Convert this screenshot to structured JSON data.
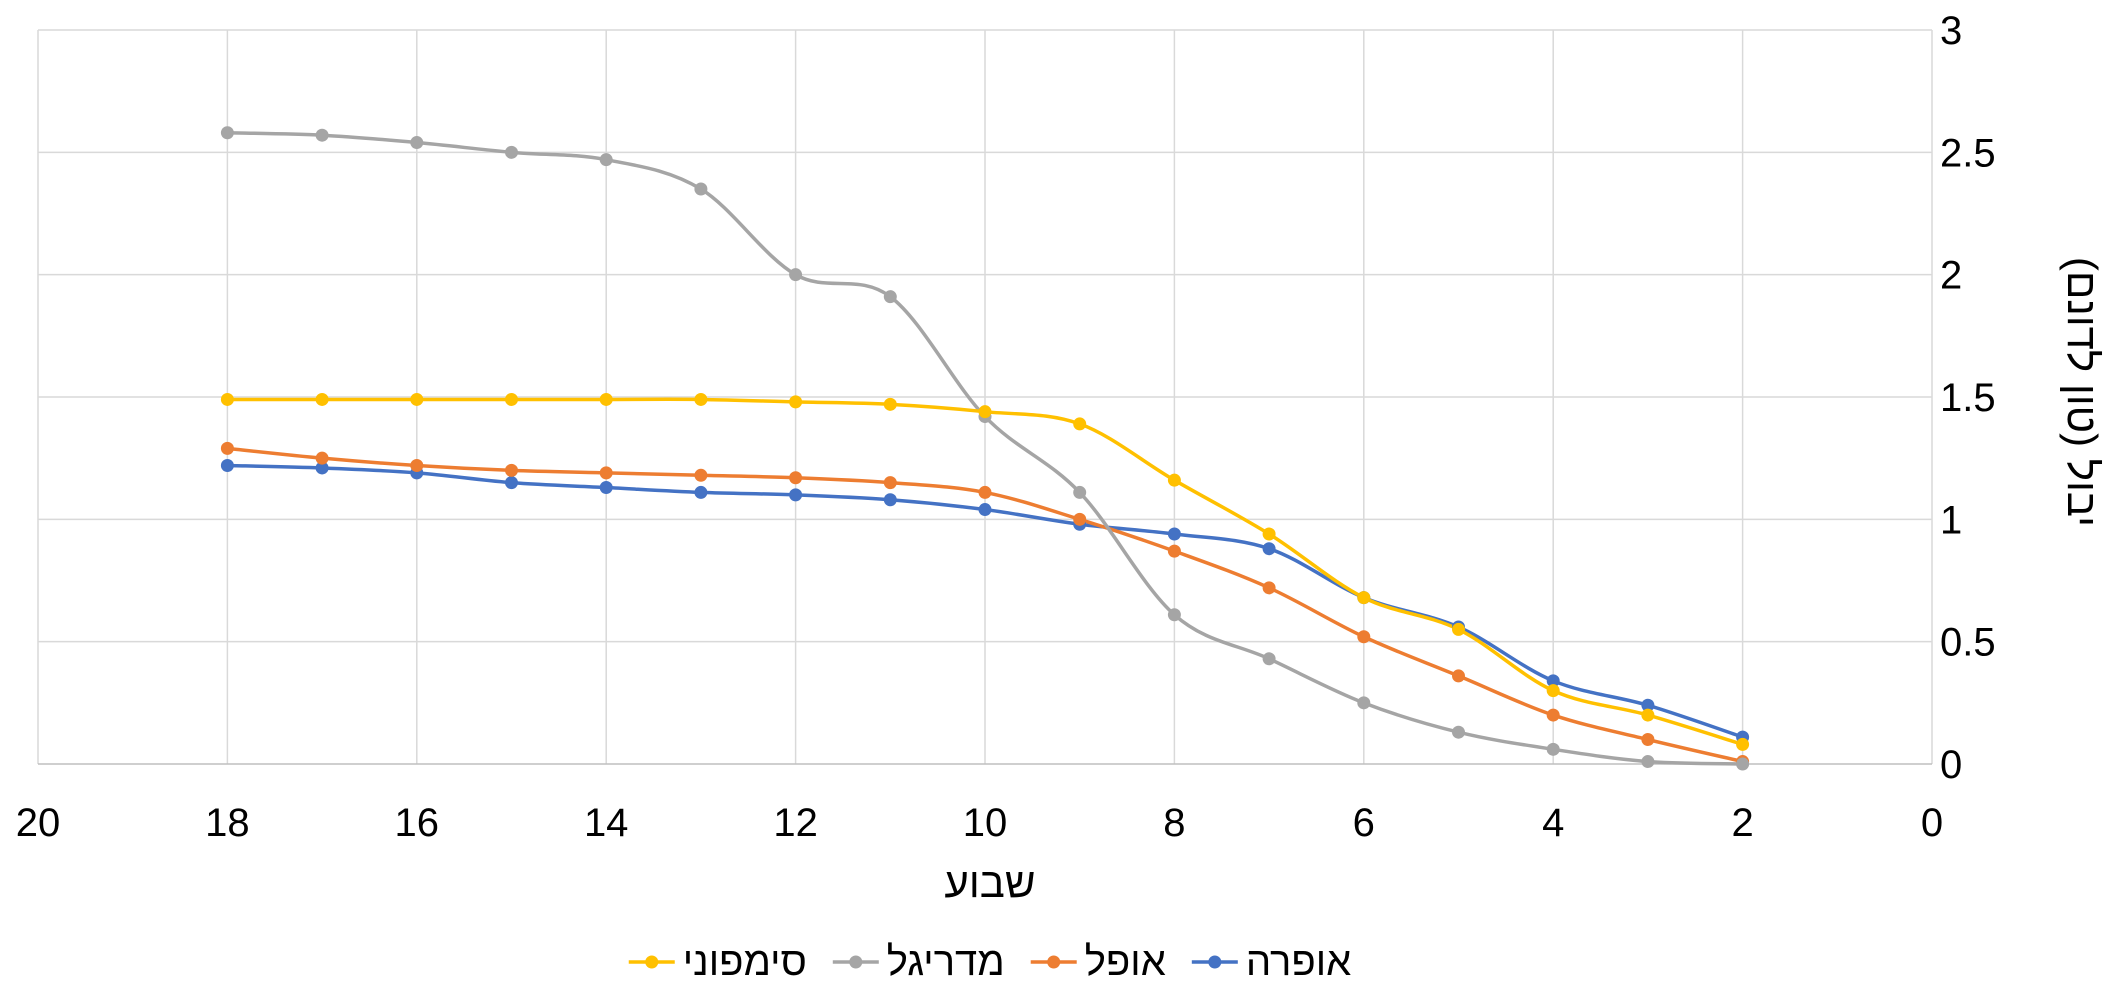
{
  "chart_data": {
    "type": "line",
    "xlabel": "שבוע",
    "ylabel": "יבול (טון לדונם)",
    "xlim": [
      0,
      20
    ],
    "ylim": [
      0,
      3
    ],
    "x_reversed": true,
    "y_axis_side": "right",
    "x_ticks": [
      "20",
      "18",
      "16",
      "14",
      "12",
      "10",
      "8",
      "6",
      "4",
      "2",
      "0"
    ],
    "y_ticks": [
      "0",
      "0.5",
      "1",
      "1.5",
      "2",
      "2.5",
      "3"
    ],
    "grid": true,
    "smooth": true,
    "legend_position": "bottom",
    "x": [
      18,
      17,
      16,
      15,
      14,
      13,
      12,
      11,
      10,
      9,
      8,
      7,
      6,
      5,
      4,
      3,
      2
    ],
    "series": [
      {
        "name": "אופרה",
        "color": "#4472C4",
        "values": [
          1.22,
          1.21,
          1.19,
          1.15,
          1.13,
          1.11,
          1.1,
          1.08,
          1.04,
          0.98,
          0.94,
          0.88,
          0.68,
          0.56,
          0.34,
          0.24,
          0.11
        ]
      },
      {
        "name": "אופל",
        "color": "#ED7D31",
        "values": [
          1.29,
          1.25,
          1.22,
          1.2,
          1.19,
          1.18,
          1.17,
          1.15,
          1.11,
          1.0,
          0.87,
          0.72,
          0.52,
          0.36,
          0.2,
          0.1,
          0.01
        ]
      },
      {
        "name": "מדריגל",
        "color": "#A5A5A5",
        "values": [
          2.58,
          2.57,
          2.54,
          2.5,
          2.47,
          2.35,
          2.0,
          1.91,
          1.42,
          1.11,
          0.61,
          0.43,
          0.25,
          0.13,
          0.06,
          0.01,
          0.0
        ]
      },
      {
        "name": "סימפוני",
        "color": "#FFC000",
        "values": [
          1.49,
          1.49,
          1.49,
          1.49,
          1.49,
          1.49,
          1.48,
          1.47,
          1.44,
          1.39,
          1.16,
          0.94,
          0.68,
          0.55,
          0.3,
          0.2,
          0.08
        ]
      }
    ]
  }
}
